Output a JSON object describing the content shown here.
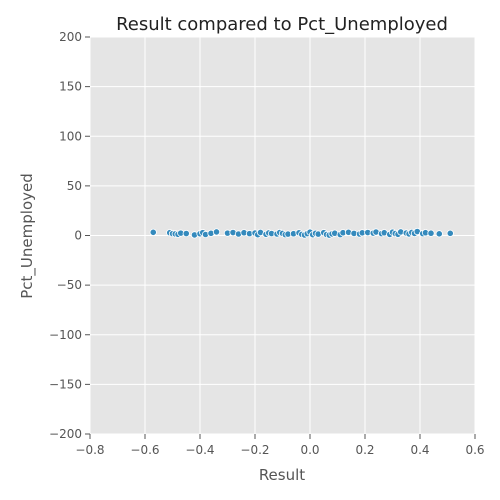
{
  "chart_data": {
    "type": "scatter",
    "title": "Result compared to Pct_Unemployed",
    "xlabel": "Result",
    "ylabel": "Pct_Unemployed",
    "xlim": [
      -0.8,
      0.6
    ],
    "ylim": [
      -200,
      200
    ],
    "xticks": [
      -0.8,
      -0.6,
      -0.4,
      -0.2,
      0.0,
      0.2,
      0.4,
      0.6
    ],
    "xtick_labels": [
      "−0.8",
      "−0.6",
      "−0.4",
      "−0.2",
      "0.0",
      "0.2",
      "0.4",
      "0.6"
    ],
    "yticks": [
      -200,
      -150,
      -100,
      -50,
      0,
      50,
      100,
      150,
      200
    ],
    "ytick_labels": [
      "−200",
      "−150",
      "−100",
      "−50",
      "0",
      "50",
      "100",
      "150",
      "200"
    ],
    "grid": true,
    "colors": {
      "background": "#e5e5e5",
      "grid": "#ffffff",
      "marker": "#348abd",
      "marker_edge": "#ffffff"
    },
    "points": [
      [
        -0.57,
        3.2
      ],
      [
        -0.51,
        2.8
      ],
      [
        -0.5,
        1.9
      ],
      [
        -0.49,
        1.6
      ],
      [
        -0.48,
        1.2
      ],
      [
        -0.47,
        2.4
      ],
      [
        -0.45,
        2.0
      ],
      [
        -0.42,
        0.6
      ],
      [
        -0.4,
        1.8
      ],
      [
        -0.39,
        2.9
      ],
      [
        -0.38,
        1.0
      ],
      [
        -0.36,
        2.2
      ],
      [
        -0.34,
        3.6
      ],
      [
        -0.3,
        2.4
      ],
      [
        -0.28,
        3.0
      ],
      [
        -0.26,
        1.5
      ],
      [
        -0.24,
        2.8
      ],
      [
        -0.22,
        1.9
      ],
      [
        -0.2,
        2.5
      ],
      [
        -0.19,
        0.8
      ],
      [
        -0.18,
        3.1
      ],
      [
        -0.16,
        1.2
      ],
      [
        -0.15,
        2.6
      ],
      [
        -0.14,
        2.0
      ],
      [
        -0.12,
        1.5
      ],
      [
        -0.11,
        3.0
      ],
      [
        -0.1,
        2.1
      ],
      [
        -0.09,
        0.9
      ],
      [
        -0.08,
        1.4
      ],
      [
        -0.06,
        1.8
      ],
      [
        -0.04,
        2.7
      ],
      [
        -0.03,
        1.1
      ],
      [
        -0.02,
        0.5
      ],
      [
        -0.01,
        1.9
      ],
      [
        0.0,
        3.4
      ],
      [
        0.01,
        0.8
      ],
      [
        0.02,
        2.2
      ],
      [
        0.03,
        1.4
      ],
      [
        0.05,
        2.9
      ],
      [
        0.06,
        1.0
      ],
      [
        0.07,
        0.4
      ],
      [
        0.08,
        1.6
      ],
      [
        0.09,
        2.3
      ],
      [
        0.11,
        0.9
      ],
      [
        0.12,
        2.8
      ],
      [
        0.14,
        3.2
      ],
      [
        0.16,
        2.1
      ],
      [
        0.18,
        1.5
      ],
      [
        0.19,
        2.7
      ],
      [
        0.21,
        3.0
      ],
      [
        0.23,
        2.4
      ],
      [
        0.24,
        3.5
      ],
      [
        0.26,
        1.9
      ],
      [
        0.27,
        2.8
      ],
      [
        0.29,
        1.1
      ],
      [
        0.3,
        3.3
      ],
      [
        0.31,
        2.0
      ],
      [
        0.32,
        1.2
      ],
      [
        0.33,
        3.6
      ],
      [
        0.35,
        2.5
      ],
      [
        0.36,
        1.6
      ],
      [
        0.37,
        3.1
      ],
      [
        0.38,
        2.1
      ],
      [
        0.39,
        4.0
      ],
      [
        0.41,
        1.9
      ],
      [
        0.42,
        2.8
      ],
      [
        0.44,
        2.3
      ],
      [
        0.47,
        1.7
      ],
      [
        0.51,
        2.2
      ]
    ]
  }
}
